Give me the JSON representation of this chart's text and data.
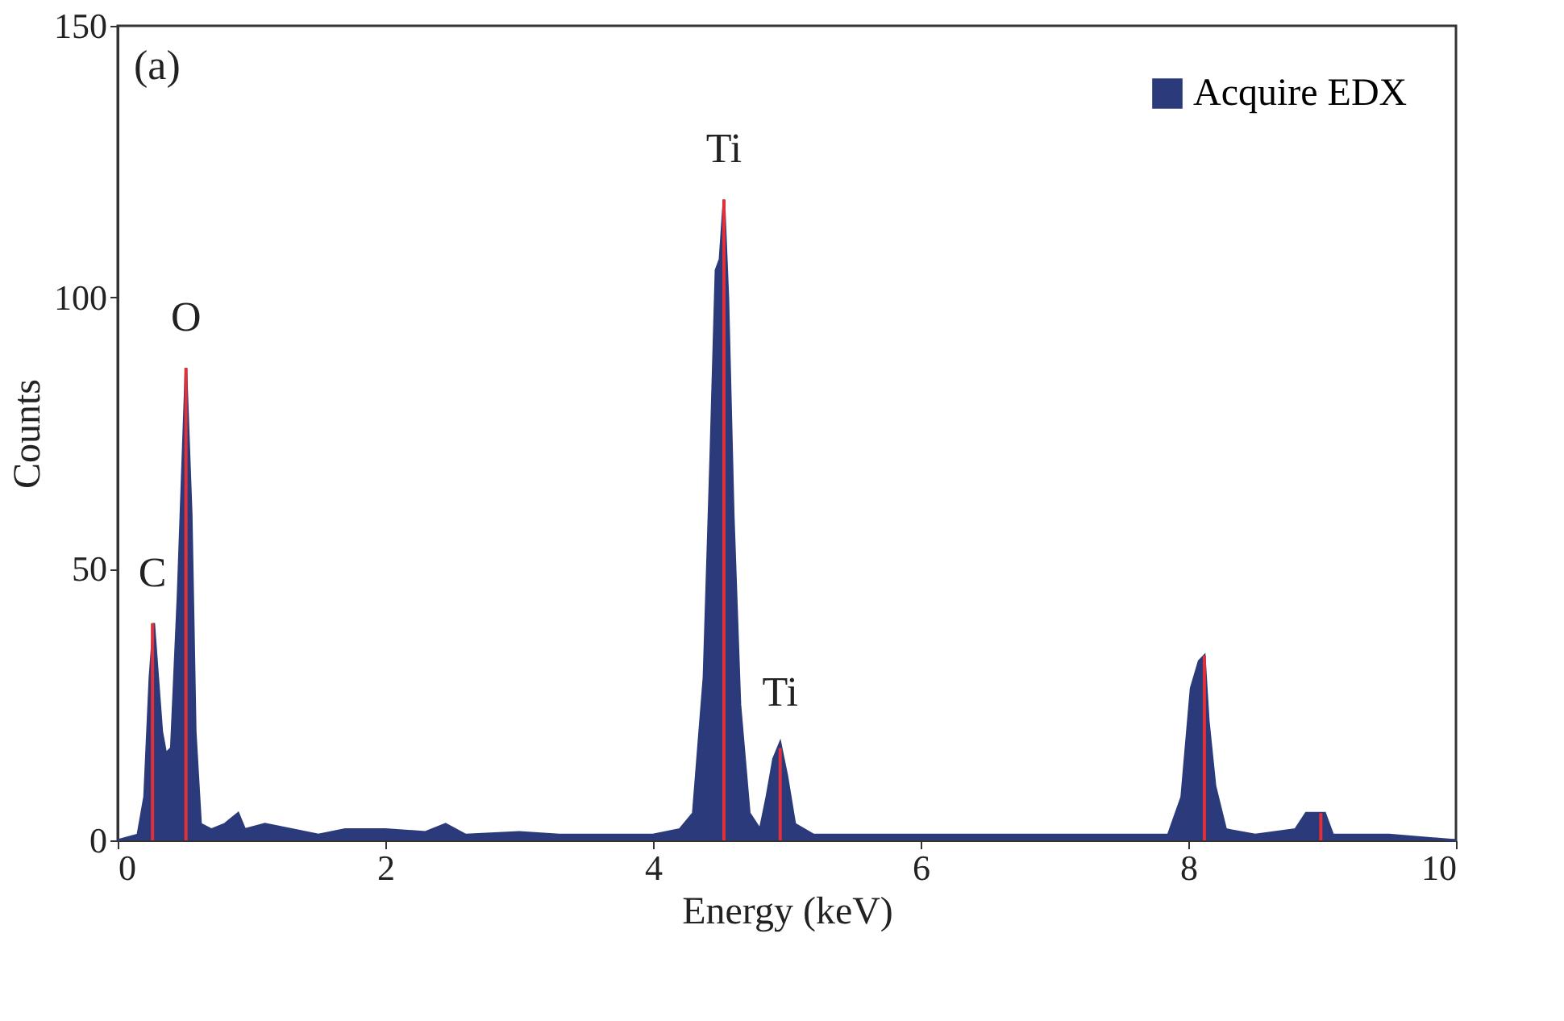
{
  "chart_data": {
    "type": "area",
    "xlabel": "Energy (keV)",
    "ylabel": "Counts",
    "xlim": [
      0,
      10
    ],
    "xticks": [
      0,
      2,
      4,
      6,
      8,
      10
    ],
    "ylim": [
      0,
      150
    ],
    "yticks": [
      0,
      50,
      100,
      150
    ],
    "grid": false,
    "legend": "top right",
    "series": [
      {
        "name": "Acquire EDX",
        "color": "#2b3a7a",
        "x": [
          0,
          0.15,
          0.2,
          0.24,
          0.27,
          0.3,
          0.33,
          0.36,
          0.4,
          0.45,
          0.48,
          0.51,
          0.55,
          0.58,
          0.62,
          0.7,
          0.8,
          0.9,
          0.95,
          1.1,
          1.3,
          1.5,
          1.7,
          2.0,
          2.3,
          2.45,
          2.6,
          3.0,
          3.3,
          3.6,
          4.0,
          4.2,
          4.3,
          4.38,
          4.43,
          4.47,
          4.5,
          4.53,
          4.56,
          4.6,
          4.65,
          4.72,
          4.8,
          4.85,
          4.9,
          4.95,
          5.0,
          5.06,
          5.2,
          5.5,
          6.0,
          6.5,
          7.0,
          7.5,
          7.85,
          7.95,
          8.02,
          8.08,
          8.12,
          8.15,
          8.2,
          8.28,
          8.5,
          8.8,
          8.88,
          8.95,
          9.02,
          9.08,
          9.5,
          10
        ],
        "values": [
          0,
          1,
          8,
          30,
          40,
          30,
          20,
          16,
          17,
          45,
          66,
          87,
          60,
          20,
          3,
          2,
          3,
          5,
          2,
          3,
          2,
          1,
          2,
          2,
          1.5,
          3,
          1,
          1.5,
          1,
          1,
          1,
          2,
          5,
          30,
          70,
          105,
          107,
          118,
          100,
          60,
          25,
          5,
          2,
          8,
          15,
          18,
          12,
          3,
          1,
          1,
          1,
          1,
          1,
          1,
          1,
          8,
          28,
          33,
          34,
          22,
          10,
          2,
          1,
          2,
          5,
          5,
          5,
          1,
          1,
          0
        ]
      },
      {
        "type": "bar",
        "color": "#e0303a",
        "x": [
          0.26,
          0.51,
          4.53,
          4.95,
          8.12,
          8.99
        ],
        "values": [
          40,
          87,
          118,
          17,
          34,
          5
        ]
      }
    ],
    "annotations": [
      "(a)",
      {
        "text": "C",
        "x": 0.26,
        "y": 40
      },
      {
        "text": "O",
        "x": 0.51,
        "y": 87
      },
      {
        "text": "Ti",
        "x": 4.53,
        "y": 118
      },
      {
        "text": "Ti",
        "x": 4.95,
        "y": 18
      }
    ]
  }
}
